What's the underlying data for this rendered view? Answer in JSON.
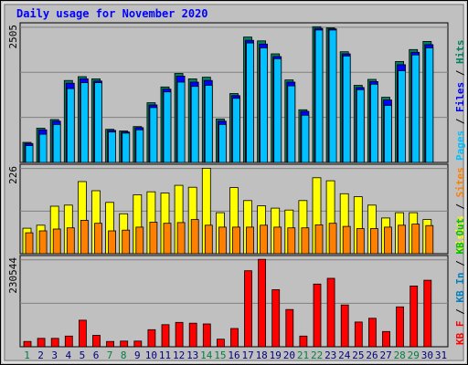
{
  "chart_data": {
    "type": "bar",
    "title": "Daily usage for November 2020",
    "days": [
      "1",
      "2",
      "3",
      "4",
      "5",
      "6",
      "7",
      "8",
      "9",
      "10",
      "11",
      "12",
      "13",
      "14",
      "15",
      "16",
      "17",
      "18",
      "19",
      "20",
      "21",
      "22",
      "23",
      "24",
      "25",
      "26",
      "27",
      "28",
      "29",
      "30",
      "31"
    ],
    "weekend_days": [
      "1",
      "7",
      "8",
      "14",
      "15",
      "21",
      "22",
      "28",
      "29"
    ],
    "colors": {
      "title": "#0000ff",
      "panel_bg": "#c0c0c0",
      "frame": "#a8a8a8",
      "gridline": "#808080",
      "hits": "#00805c",
      "files": "#0000ff",
      "pages": "#00c0ff",
      "visits": "#ffff00",
      "sites": "#ff8000",
      "kbf": "#ff0000",
      "kbin": "#0080c0",
      "kbout": "#00c000",
      "weekday_label": "#000080",
      "weekend_label": "#008040"
    },
    "panels": [
      {
        "name": "hits-files-pages",
        "scale_max_label": "2505",
        "ylim": [
          0,
          2505
        ],
        "legend": [
          "Pages",
          "/",
          "Files",
          "/",
          "Hits"
        ],
        "series": [
          {
            "name": "Hits",
            "values": [
              370,
              630,
              790,
              1510,
              1580,
              1540,
              610,
              580,
              660,
              1100,
              1390,
              1640,
              1540,
              1570,
              800,
              1270,
              2310,
              2240,
              2000,
              1520,
              970,
              2500,
              2480,
              2040,
              1420,
              1530,
              1200,
              1860,
              2080,
              2230,
              0
            ]
          },
          {
            "name": "Files",
            "values": [
              350,
              600,
              760,
              1460,
              1540,
              1500,
              590,
              560,
              640,
              1060,
              1350,
              1590,
              1480,
              1510,
              760,
              1230,
              2250,
              2180,
              1950,
              1480,
              940,
              2470,
              2460,
              2000,
              1380,
              1490,
              1150,
              1800,
              2030,
              2170,
              0
            ]
          },
          {
            "name": "Pages",
            "values": [
              310,
              520,
              700,
              1360,
              1470,
              1470,
              560,
              540,
              600,
              1010,
              1300,
              1480,
              1400,
              1420,
              700,
              1180,
              2200,
              2110,
              1910,
              1410,
              870,
              2440,
              2440,
              1960,
              1340,
              1440,
              1050,
              1690,
              1980,
              2110,
              0
            ]
          }
        ]
      },
      {
        "name": "visits-sites",
        "scale_max_label": "226",
        "ylim": [
          0,
          226
        ],
        "legend": [
          "Visits",
          "/",
          "Sites"
        ],
        "series": [
          {
            "name": "Visits",
            "values": [
              67,
              75,
              125,
              128,
              190,
              166,
              135,
              105,
              155,
              163,
              160,
              180,
              175,
              225,
              108,
              174,
              140,
              126,
              120,
              115,
              140,
              200,
              192,
              158,
              150,
              128,
              94,
              108,
              108,
              90,
              0
            ]
          },
          {
            "name": "Sites",
            "values": [
              55,
              60,
              65,
              68,
              88,
              80,
              60,
              62,
              70,
              83,
              80,
              82,
              90,
              75,
              70,
              70,
              70,
              75,
              70,
              68,
              68,
              76,
              80,
              72,
              66,
              66,
              70,
              75,
              78,
              74,
              0
            ]
          }
        ]
      },
      {
        "name": "traffic",
        "scale_max_label": "230544",
        "ylim": [
          0,
          230544
        ],
        "legend": [
          "KB F",
          "/",
          "KB In",
          "/",
          "KB Out"
        ],
        "series": [
          {
            "name": "KB F",
            "values": [
              14000,
              22000,
              22000,
              28000,
              70000,
              30000,
              14000,
              15000,
              15000,
              45000,
              58000,
              64000,
              62000,
              60000,
              20000,
              48000,
              200000,
              230000,
              150000,
              98000,
              28000,
              165000,
              180000,
              110000,
              65000,
              75000,
              40000,
              105000,
              160000,
              175000,
              0
            ]
          }
        ]
      }
    ]
  }
}
